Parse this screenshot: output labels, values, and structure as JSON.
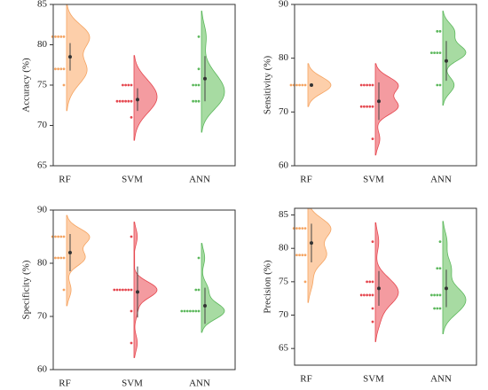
{
  "chart_data": [
    {
      "type": "violin",
      "ylabel": "Accuracy (%)",
      "ylim": [
        65,
        85
      ],
      "yticks": [
        65,
        70,
        75,
        80,
        85
      ],
      "categories": [
        "RF",
        "SVM",
        "ANN"
      ],
      "series": [
        {
          "color": "#f5a462",
          "values": [
            81,
            81,
            81,
            81,
            81,
            77,
            77,
            77,
            77,
            75
          ],
          "mean": 78.5,
          "sd": 1.7
        },
        {
          "color": "#e5474f",
          "values": [
            75,
            75,
            75,
            75,
            73,
            73,
            73,
            73,
            73,
            73,
            71
          ],
          "mean": 73.2,
          "sd": 1.4
        },
        {
          "color": "#5cb85c",
          "values": [
            81,
            77,
            75,
            75,
            75,
            73,
            73,
            73
          ],
          "mean": 75.8,
          "sd": 2.8
        }
      ]
    },
    {
      "type": "violin",
      "ylabel": "Sensitivity (%)",
      "ylim": [
        60,
        90
      ],
      "yticks": [
        60,
        70,
        80,
        90
      ],
      "categories": [
        "RF",
        "SVM",
        "ANN"
      ],
      "series": [
        {
          "color": "#f5a462",
          "values": [
            75,
            75,
            75,
            75,
            75,
            75
          ],
          "mean": 75,
          "sd": 0
        },
        {
          "color": "#e5474f",
          "values": [
            75,
            75,
            75,
            75,
            75,
            71,
            71,
            71,
            71,
            71,
            65
          ],
          "mean": 72,
          "sd": 3.5
        },
        {
          "color": "#5cb85c",
          "values": [
            85,
            85,
            81,
            81,
            81,
            81,
            75,
            75
          ],
          "mean": 79.5,
          "sd": 3.7
        }
      ]
    },
    {
      "type": "violin",
      "ylabel": "Specificity (%)",
      "ylim": [
        60,
        90
      ],
      "yticks": [
        60,
        70,
        80,
        90
      ],
      "categories": [
        "RF",
        "SVM",
        "ANN"
      ],
      "series": [
        {
          "color": "#f5a462",
          "values": [
            85,
            85,
            85,
            85,
            85,
            81,
            81,
            81,
            81,
            75
          ],
          "mean": 82,
          "sd": 3.5
        },
        {
          "color": "#e5474f",
          "values": [
            85,
            75,
            75,
            75,
            75,
            75,
            75,
            75,
            71,
            65
          ],
          "mean": 74.6,
          "sd": 4.8
        },
        {
          "color": "#5cb85c",
          "values": [
            81,
            75,
            75,
            71,
            71,
            71,
            71,
            71,
            71,
            71
          ],
          "mean": 72,
          "sd": 3.4
        }
      ]
    },
    {
      "type": "violin",
      "ylabel": "Precision (%)",
      "ylim": [
        62.5,
        86
      ],
      "yticks": [
        65,
        70,
        75,
        80,
        85
      ],
      "categories": [
        "RF",
        "SVM",
        "ANN"
      ],
      "series": [
        {
          "color": "#f5a462",
          "values": [
            83,
            83,
            83,
            83,
            83,
            79,
            79,
            79,
            79,
            75
          ],
          "mean": 80.8,
          "sd": 2.9
        },
        {
          "color": "#e5474f",
          "values": [
            81,
            75,
            75,
            75,
            73,
            73,
            73,
            73,
            73,
            71,
            69
          ],
          "mean": 74,
          "sd": 2.6
        },
        {
          "color": "#5cb85c",
          "values": [
            81,
            77,
            77,
            73,
            73,
            73,
            73,
            71,
            71,
            71
          ],
          "mean": 74,
          "sd": 2.8
        }
      ]
    }
  ]
}
